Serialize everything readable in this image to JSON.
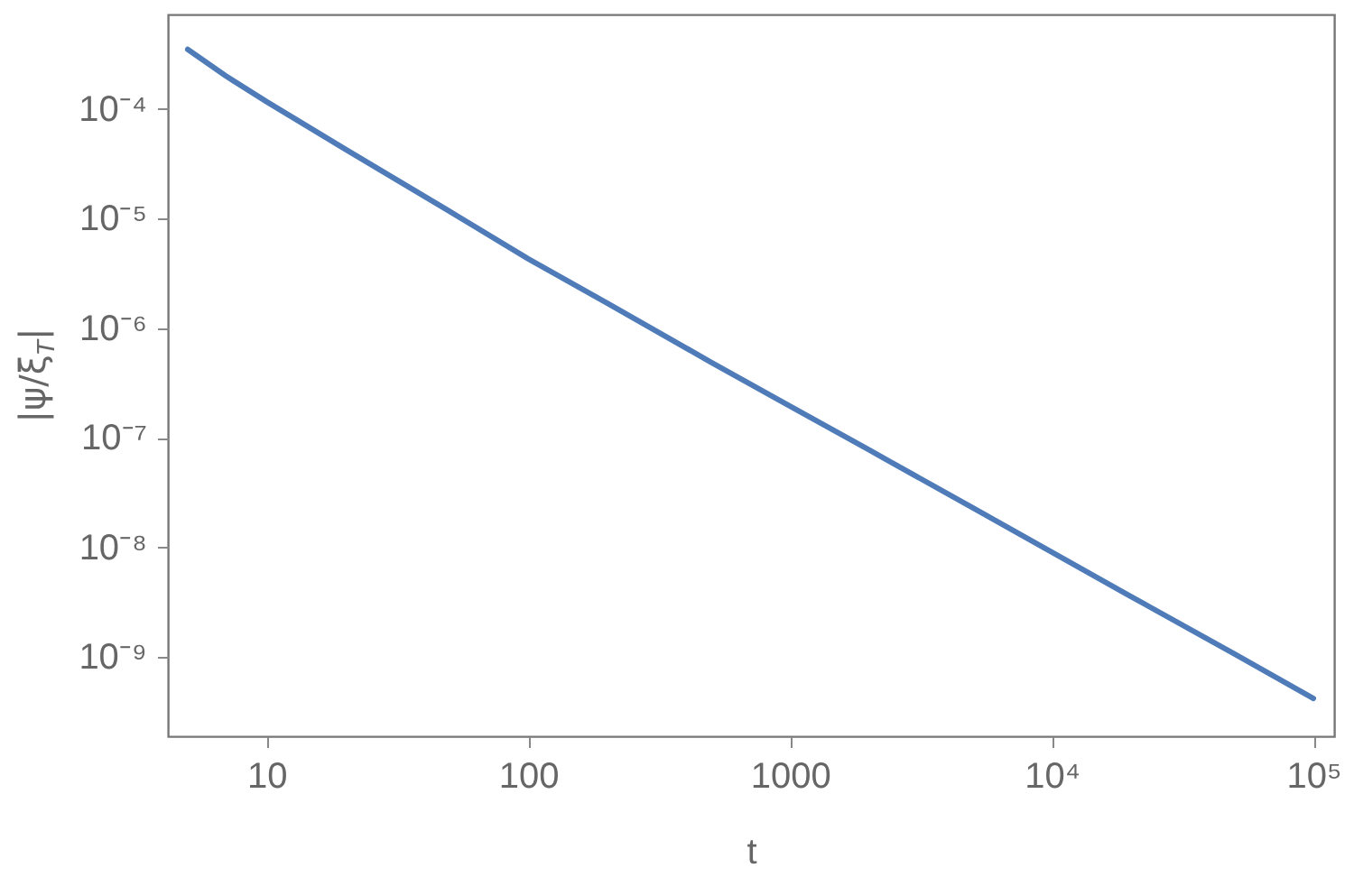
{
  "chart_data": {
    "type": "line",
    "xlabel": "t",
    "ylabel": "|ψ/ξ$_{T}$|",
    "log": "xy",
    "x": [
      5,
      7,
      10,
      20,
      50,
      100,
      200,
      500,
      1000,
      2000,
      5000,
      10000,
      20000,
      50000,
      100000
    ],
    "series": [
      {
        "color": "#4f7bb8",
        "values": [
          0.00035,
          0.0002,
          0.000117,
          4.3e-05,
          1.17e-05,
          4.3e-06,
          1.7e-06,
          4.9e-07,
          1.95e-07,
          7.8e-08,
          2.3e-08,
          9.1e-09,
          3.6e-09,
          1.07e-09,
          4.2e-10
        ]
      }
    ],
    "xlim": [
      4.2,
      120000
    ],
    "ylim": [
      1.9e-10,
      0.00073
    ],
    "xticks": [
      10,
      100,
      1000,
      {
        "value": 10000,
        "label": "10⁴"
      },
      {
        "value": 100000,
        "label": "10⁵"
      }
    ],
    "yticks": [
      {
        "value": 0.0001,
        "label": "10⁻⁴"
      },
      {
        "value": 1e-05,
        "label": "10⁻⁵"
      },
      {
        "value": 1e-06,
        "label": "10⁻⁶"
      },
      {
        "value": 1e-07,
        "label": "10⁻⁷"
      },
      {
        "value": 1e-08,
        "label": "10⁻⁸"
      },
      {
        "value": 1e-09,
        "label": "10⁻⁹"
      }
    ]
  }
}
